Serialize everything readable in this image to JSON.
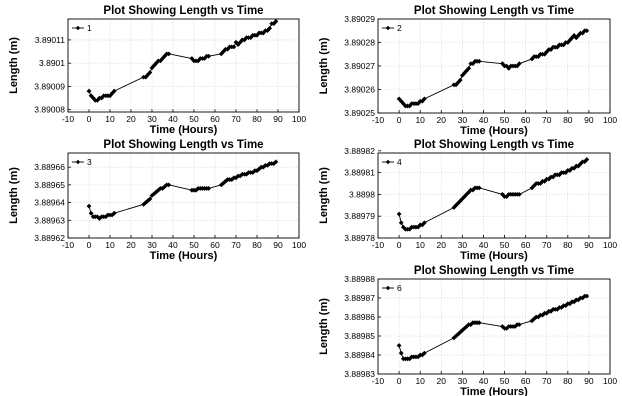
{
  "chart_data": [
    {
      "type": "line",
      "title": "Plot Showing Length vs Time",
      "xlabel": "Time (Hours)",
      "ylabel": "Length (m)",
      "xlim": [
        -10,
        100
      ],
      "ylim": [
        3.890079,
        3.890119
      ],
      "xticks": [
        "-10",
        "0",
        "10",
        "20",
        "30",
        "40",
        "50",
        "60",
        "70",
        "80",
        "90",
        "100"
      ],
      "yticks": [
        "3.89008",
        "3.89009",
        "3.8901",
        "3.89011"
      ],
      "ytick_values": [
        3.89008,
        3.89009,
        3.8901,
        3.89011
      ],
      "legend_position": "top-left",
      "grid": true,
      "series": [
        {
          "name": "1",
          "marker": "diamond",
          "color": "#000000",
          "x": [
            0,
            1,
            2,
            3,
            4,
            5,
            6,
            7,
            8,
            9,
            10,
            11,
            12,
            26,
            27,
            28,
            29,
            30,
            31,
            32,
            33,
            34,
            35,
            36,
            37,
            38,
            49,
            50,
            51,
            52,
            53,
            54,
            55,
            56,
            57,
            63,
            64,
            65,
            66,
            67,
            68,
            69,
            70,
            71,
            72,
            73,
            74,
            75,
            76,
            77,
            78,
            79,
            80,
            81,
            82,
            83,
            84,
            85,
            86,
            87,
            88,
            89
          ],
          "y": [
            3.890088,
            3.890086,
            3.890085,
            3.890084,
            3.890084,
            3.890085,
            3.890085,
            3.890086,
            3.890086,
            3.890086,
            3.890086,
            3.890087,
            3.890088,
            3.890094,
            3.890094,
            3.890095,
            3.890096,
            3.890098,
            3.890099,
            3.8901,
            3.890101,
            3.890101,
            3.890102,
            3.890103,
            3.890104,
            3.890104,
            3.890102,
            3.890101,
            3.890101,
            3.890101,
            3.890102,
            3.890102,
            3.890102,
            3.890103,
            3.890103,
            3.890104,
            3.890105,
            3.890106,
            3.890106,
            3.890107,
            3.890107,
            3.890107,
            3.890109,
            3.890108,
            3.890109,
            3.89011,
            3.89011,
            3.890111,
            3.890111,
            3.890111,
            3.890112,
            3.890112,
            3.890112,
            3.890113,
            3.890113,
            3.890113,
            3.890114,
            3.890114,
            3.890115,
            3.890117,
            3.890117,
            3.890118
          ]
        }
      ]
    },
    {
      "type": "line",
      "title": "Plot Showing Length vs Time",
      "xlabel": "Time (Hours)",
      "ylabel": "Length (m)",
      "xlim": [
        -10,
        100
      ],
      "ylim": [
        3.89025,
        3.89029
      ],
      "xticks": [
        "-10",
        "0",
        "10",
        "20",
        "30",
        "40",
        "50",
        "60",
        "70",
        "80",
        "90",
        "100"
      ],
      "yticks": [
        "3.89025",
        "3.89026",
        "3.89027",
        "3.89028",
        "3.89029"
      ],
      "ytick_values": [
        3.89025,
        3.89026,
        3.89027,
        3.89028,
        3.89029
      ],
      "legend_position": "top-left",
      "grid": true,
      "series": [
        {
          "name": "2",
          "marker": "diamond",
          "color": "#000000",
          "x": [
            0,
            1,
            2,
            3,
            4,
            5,
            6,
            7,
            8,
            9,
            10,
            11,
            12,
            26,
            27,
            28,
            29,
            30,
            31,
            32,
            33,
            34,
            35,
            36,
            37,
            38,
            49,
            50,
            51,
            52,
            53,
            54,
            55,
            56,
            57,
            63,
            64,
            65,
            66,
            67,
            68,
            69,
            70,
            71,
            72,
            73,
            74,
            75,
            76,
            77,
            78,
            79,
            80,
            81,
            82,
            83,
            84,
            85,
            86,
            87,
            88,
            89
          ],
          "y": [
            3.890256,
            3.890255,
            3.890254,
            3.890253,
            3.890253,
            3.890253,
            3.890254,
            3.890254,
            3.890254,
            3.890254,
            3.890255,
            3.890255,
            3.890256,
            3.890262,
            3.890262,
            3.890263,
            3.890264,
            3.890266,
            3.890267,
            3.890268,
            3.890269,
            3.890271,
            3.890271,
            3.890272,
            3.890272,
            3.890272,
            3.890271,
            3.89027,
            3.89027,
            3.890269,
            3.89027,
            3.89027,
            3.89027,
            3.89027,
            3.890271,
            3.890273,
            3.890274,
            3.890274,
            3.890274,
            3.890275,
            3.890275,
            3.890275,
            3.890276,
            3.890277,
            3.890277,
            3.890278,
            3.890278,
            3.890278,
            3.890279,
            3.890279,
            3.890279,
            3.89028,
            3.89028,
            3.890281,
            3.890282,
            3.890283,
            3.890282,
            3.890283,
            3.890284,
            3.890284,
            3.890285,
            3.890285
          ]
        }
      ]
    },
    {
      "type": "line",
      "title": "Plot Showing Length vs Time",
      "xlabel": "Time (Hours)",
      "ylabel": "Length (m)",
      "xlim": [
        -10,
        100
      ],
      "ylim": [
        3.88962,
        3.889668
      ],
      "xticks": [
        "-10",
        "0",
        "10",
        "20",
        "30",
        "40",
        "50",
        "60",
        "70",
        "80",
        "90",
        "100"
      ],
      "yticks": [
        "3.88962",
        "3.88963",
        "3.88964",
        "3.88965",
        "3.88966"
      ],
      "ytick_values": [
        3.88962,
        3.88963,
        3.88964,
        3.88965,
        3.88966
      ],
      "legend_position": "top-left",
      "grid": true,
      "series": [
        {
          "name": "3",
          "marker": "diamond",
          "color": "#000000",
          "x": [
            0,
            1,
            2,
            3,
            4,
            5,
            6,
            7,
            8,
            9,
            10,
            11,
            12,
            26,
            27,
            28,
            29,
            30,
            31,
            32,
            33,
            34,
            35,
            36,
            37,
            38,
            49,
            50,
            51,
            52,
            53,
            54,
            55,
            56,
            57,
            63,
            64,
            65,
            66,
            67,
            68,
            69,
            70,
            71,
            72,
            73,
            74,
            75,
            76,
            77,
            78,
            79,
            80,
            81,
            82,
            83,
            84,
            85,
            86,
            87,
            88,
            89
          ],
          "y": [
            3.889638,
            3.889634,
            3.889632,
            3.889632,
            3.889632,
            3.889631,
            3.889632,
            3.889632,
            3.889632,
            3.889633,
            3.889633,
            3.889633,
            3.889634,
            3.889639,
            3.88964,
            3.889641,
            3.889642,
            3.889644,
            3.889645,
            3.889646,
            3.889647,
            3.889648,
            3.889648,
            3.889649,
            3.88965,
            3.88965,
            3.889647,
            3.889647,
            3.889647,
            3.889648,
            3.889648,
            3.889648,
            3.889648,
            3.889648,
            3.889648,
            3.88965,
            3.889651,
            3.889652,
            3.889653,
            3.889653,
            3.889653,
            3.889654,
            3.889654,
            3.889655,
            3.889655,
            3.889656,
            3.889656,
            3.889656,
            3.889657,
            3.889657,
            3.889657,
            3.889658,
            3.889658,
            3.889659,
            3.88966,
            3.88966,
            3.889661,
            3.889661,
            3.889662,
            3.889662,
            3.889662,
            3.889663
          ]
        }
      ]
    },
    {
      "type": "line",
      "title": "Plot Showing Length vs Time",
      "xlabel": "Time (Hours)",
      "ylabel": "Length (m)",
      "xlim": [
        -10,
        100
      ],
      "ylim": [
        3.88978,
        3.889819
      ],
      "xticks": [
        "-10",
        "0",
        "10",
        "20",
        "30",
        "40",
        "50",
        "60",
        "70",
        "80",
        "90",
        "100"
      ],
      "yticks": [
        "3.88978",
        "3.88979",
        "3.8898",
        "3.88981",
        "3.88982"
      ],
      "ytick_values": [
        3.88978,
        3.88979,
        3.8898,
        3.88981,
        3.88982
      ],
      "legend_position": "top-left",
      "grid": true,
      "series": [
        {
          "name": "4",
          "marker": "diamond",
          "color": "#000000",
          "x": [
            0,
            1,
            2,
            3,
            4,
            5,
            6,
            7,
            8,
            9,
            10,
            11,
            12,
            26,
            27,
            28,
            29,
            30,
            31,
            32,
            33,
            34,
            35,
            36,
            37,
            38,
            49,
            50,
            51,
            52,
            53,
            54,
            55,
            56,
            57,
            63,
            64,
            65,
            66,
            67,
            68,
            69,
            70,
            71,
            72,
            73,
            74,
            75,
            76,
            77,
            78,
            79,
            80,
            81,
            82,
            83,
            84,
            85,
            86,
            87,
            88,
            89
          ],
          "y": [
            3.889791,
            3.889787,
            3.889785,
            3.889784,
            3.889784,
            3.889784,
            3.889785,
            3.889785,
            3.889785,
            3.889785,
            3.889786,
            3.889786,
            3.889787,
            3.889794,
            3.889795,
            3.889796,
            3.889797,
            3.889798,
            3.889799,
            3.8898,
            3.889801,
            3.889802,
            3.889802,
            3.889803,
            3.889803,
            3.889803,
            3.8898,
            3.889799,
            3.889799,
            3.8898,
            3.8898,
            3.8898,
            3.8898,
            3.8898,
            3.8898,
            3.889803,
            3.889804,
            3.889805,
            3.889805,
            3.889805,
            3.889806,
            3.889806,
            3.889807,
            3.889807,
            3.889808,
            3.889808,
            3.889809,
            3.889809,
            3.889809,
            3.88981,
            3.88981,
            3.88981,
            3.889811,
            3.889811,
            3.889812,
            3.889812,
            3.889813,
            3.889813,
            3.889814,
            3.889815,
            3.889815,
            3.889816
          ]
        }
      ]
    },
    {
      "type": "line",
      "title": "Plot Showing Length vs Time",
      "xlabel": "Time (Hours)",
      "ylabel": "Length (m)",
      "xlim": [
        -10,
        100
      ],
      "ylim": [
        3.88983,
        3.88988
      ],
      "xticks": [
        "-10",
        "0",
        "10",
        "20",
        "30",
        "40",
        "50",
        "60",
        "70",
        "80",
        "90",
        "100"
      ],
      "yticks": [
        "3.88983",
        "3.88984",
        "3.88985",
        "3.88986",
        "3.88987",
        "3.88988"
      ],
      "ytick_values": [
        3.88983,
        3.88984,
        3.88985,
        3.88986,
        3.88987,
        3.88988
      ],
      "legend_position": "top-left",
      "grid": true,
      "series": [
        {
          "name": "6",
          "marker": "diamond",
          "color": "#000000",
          "x": [
            0,
            1,
            2,
            3,
            4,
            5,
            6,
            7,
            8,
            9,
            10,
            11,
            12,
            26,
            27,
            28,
            29,
            30,
            31,
            32,
            33,
            34,
            35,
            36,
            37,
            38,
            49,
            50,
            51,
            52,
            53,
            54,
            55,
            56,
            57,
            63,
            64,
            65,
            66,
            67,
            68,
            69,
            70,
            71,
            72,
            73,
            74,
            75,
            76,
            77,
            78,
            79,
            80,
            81,
            82,
            83,
            84,
            85,
            86,
            87,
            88,
            89
          ],
          "y": [
            3.889845,
            3.889841,
            3.889838,
            3.889838,
            3.889838,
            3.889838,
            3.889839,
            3.889839,
            3.889839,
            3.889839,
            3.88984,
            3.88984,
            3.889841,
            3.889849,
            3.88985,
            3.889851,
            3.889852,
            3.889853,
            3.889854,
            3.889855,
            3.889856,
            3.889856,
            3.889857,
            3.889857,
            3.889857,
            3.889857,
            3.889855,
            3.889854,
            3.889854,
            3.889855,
            3.889855,
            3.889855,
            3.889855,
            3.889856,
            3.889856,
            3.889858,
            3.889859,
            3.88986,
            3.88986,
            3.889861,
            3.889861,
            3.889862,
            3.889862,
            3.889863,
            3.889863,
            3.889864,
            3.889864,
            3.889864,
            3.889865,
            3.889865,
            3.889866,
            3.889866,
            3.889867,
            3.889867,
            3.889868,
            3.889868,
            3.889869,
            3.889869,
            3.88987,
            3.88987,
            3.889871,
            3.889871
          ]
        }
      ]
    }
  ]
}
